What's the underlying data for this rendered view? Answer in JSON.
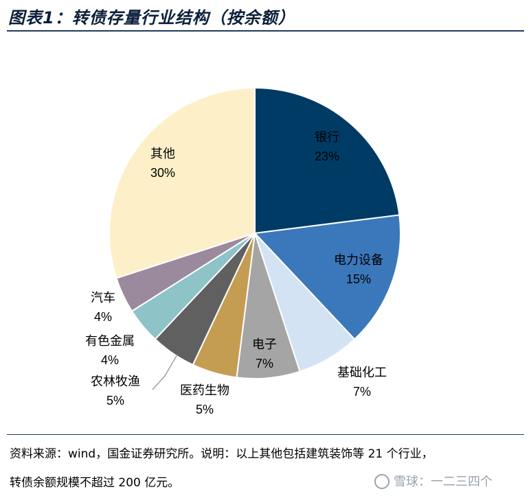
{
  "title": "图表1：转债存量行业结构（按余额）",
  "chart_data": {
    "type": "pie",
    "title": "图表1：转债存量行业结构（按余额）",
    "slices": [
      {
        "name": "银行",
        "label": "23%",
        "value": 23,
        "color": "#003b66"
      },
      {
        "name": "电力设备",
        "label": "15%",
        "value": 15,
        "color": "#3b78bb"
      },
      {
        "name": "基础化工",
        "label": "7%",
        "value": 7,
        "color": "#d3e3f3"
      },
      {
        "name": "电子",
        "label": "7%",
        "value": 7,
        "color": "#a5a5a5"
      },
      {
        "name": "医药生物",
        "label": "5%",
        "value": 5,
        "color": "#c49d53"
      },
      {
        "name": "农林牧渔",
        "label": "5%",
        "value": 5,
        "color": "#606060"
      },
      {
        "name": "有色金属",
        "label": "4%",
        "value": 4,
        "color": "#8ec3c8"
      },
      {
        "name": "汽车",
        "label": "4%",
        "value": 4,
        "color": "#9b8a9d"
      },
      {
        "name": "其他",
        "label": "30%",
        "value": 30,
        "color": "#fdf0c9"
      }
    ]
  },
  "notes": {
    "line1": "资料来源：wind，国金证券研究所。说明：以上其他包括建筑装饰等 21 个行业，",
    "line2": "转债余额规模不超过 200 亿元。"
  },
  "watermark": "雪球：一二三四个"
}
